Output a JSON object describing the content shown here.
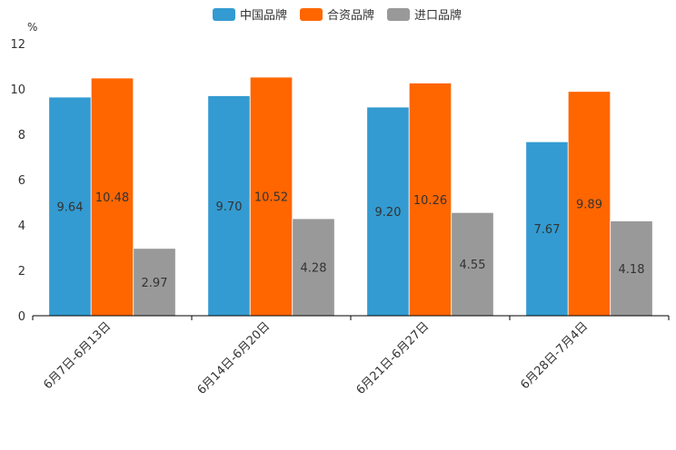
{
  "chart_data": {
    "type": "bar",
    "title": "",
    "ylabel": "%",
    "xlabel": "",
    "ylim": [
      0,
      12
    ],
    "yticks": [
      0,
      2,
      4,
      6,
      8,
      10,
      12
    ],
    "categories": [
      "6月7日-6月13日",
      "6月14日-6月20日",
      "6月21日-6月27日",
      "6月28日-7月4日"
    ],
    "series": [
      {
        "name": "中国品牌",
        "color": "#339BD1",
        "values": [
          9.64,
          9.7,
          9.2,
          7.67
        ],
        "labels": [
          "9.64",
          "9.70",
          "9.20",
          "7.67"
        ]
      },
      {
        "name": "合资品牌",
        "color": "#FF6600",
        "values": [
          10.48,
          10.52,
          10.26,
          9.89
        ],
        "labels": [
          "10.48",
          "10.52",
          "10.26",
          "9.89"
        ]
      },
      {
        "name": "进口品牌",
        "color": "#999999",
        "values": [
          2.97,
          4.28,
          4.55,
          4.18
        ],
        "labels": [
          "2.97",
          "4.28",
          "4.55",
          "4.18"
        ]
      }
    ],
    "legend_position": "top-center",
    "grid": false
  }
}
